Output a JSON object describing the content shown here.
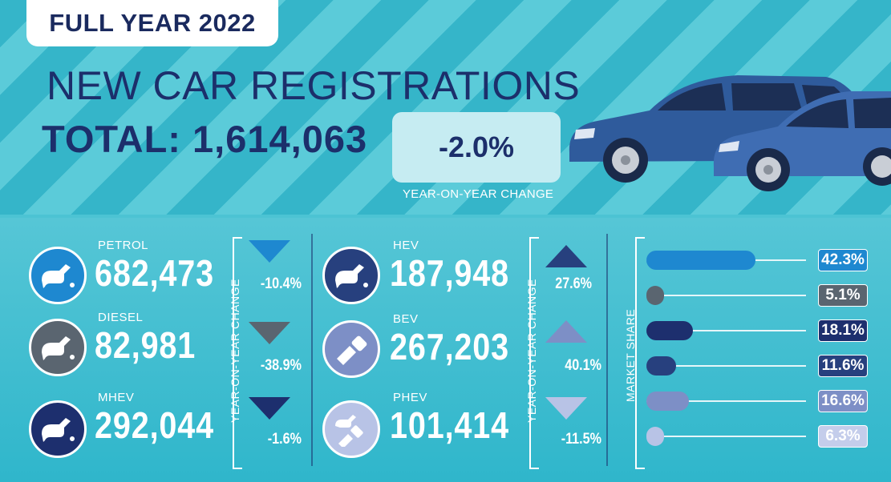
{
  "header": {
    "period": "FULL YEAR 2022",
    "title": "NEW CAR REGISTRATIONS",
    "total_label": "TOTAL:",
    "total_value": "1,614,063",
    "yoy_change": "-2.0%",
    "yoy_caption": "YEAR-ON-YEAR CHANGE"
  },
  "colors": {
    "petrol": "#1e88d0",
    "diesel": "#5a6570",
    "mhev": "#1d2f6e",
    "hev": "#27407e",
    "bev": "#7d8fc6",
    "phev": "#b8c3e6"
  },
  "left_group": {
    "change_caption": "YEAR-ON-YEAR CHANGE",
    "items": [
      {
        "label": "PETROL",
        "value": "682,473",
        "change": "-10.4%",
        "direction": "down",
        "icon": "fuel-pump-icon"
      },
      {
        "label": "DIESEL",
        "value": "82,981",
        "change": "-38.9%",
        "direction": "down",
        "icon": "fuel-pump-icon"
      },
      {
        "label": "MHEV",
        "value": "292,044",
        "change": "-1.6%",
        "direction": "down",
        "icon": "fuel-pump-icon"
      }
    ]
  },
  "right_group": {
    "change_caption": "YEAR-ON-YEAR CHANGE",
    "items": [
      {
        "label": "HEV",
        "value": "187,948",
        "change": "27.6%",
        "direction": "up",
        "icon": "fuel-pump-icon"
      },
      {
        "label": "BEV",
        "value": "267,203",
        "change": "40.1%",
        "direction": "up",
        "icon": "charging-plug-icon"
      },
      {
        "label": "PHEV",
        "value": "101,414",
        "change": "-11.5%",
        "direction": "down",
        "icon": "plug-and-pump-icon"
      }
    ]
  },
  "market_share": {
    "caption": "MARKET SHARE",
    "items": [
      {
        "fuel": "petrol",
        "value": 42.3,
        "label": "42.3%"
      },
      {
        "fuel": "diesel",
        "value": 5.1,
        "label": "5.1%"
      },
      {
        "fuel": "mhev",
        "value": 18.1,
        "label": "18.1%"
      },
      {
        "fuel": "hev",
        "value": 11.6,
        "label": "11.6%"
      },
      {
        "fuel": "bev",
        "value": 16.6,
        "label": "16.6%"
      },
      {
        "fuel": "phev",
        "value": 6.3,
        "label": "6.3%"
      }
    ]
  }
}
